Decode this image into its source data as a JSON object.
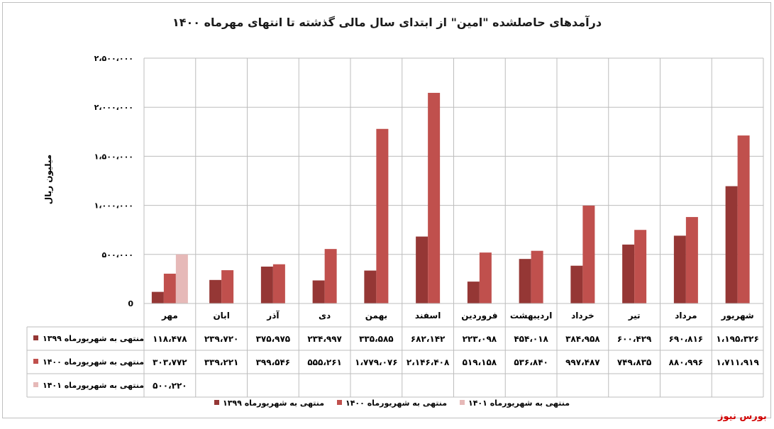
{
  "chart_data": {
    "type": "bar",
    "title": "درآمدهای حاصلشده \"امین\" از ابتدای سال مالی گذشته تا انتهای مهرماه ۱۴۰۰",
    "ylabel": "میلیون ریال",
    "ylim": [
      0,
      2500000
    ],
    "yticks": [
      0,
      500000,
      1000000,
      1500000,
      2000000,
      2500000
    ],
    "ytick_labels": [
      "0",
      "۵۰۰،۰۰۰",
      "۱،۰۰۰،۰۰۰",
      "۱،۵۰۰،۰۰۰",
      "۲،۰۰۰،۰۰۰",
      "۲،۵۰۰،۰۰۰"
    ],
    "grid": true,
    "legend_position": "bottom",
    "categories": [
      "مهر",
      "ابان",
      "آذر",
      "دی",
      "بهمن",
      "اسفند",
      "فروردین",
      "اردیبهشت",
      "خرداد",
      "تیر",
      "مرداد",
      "شهریور"
    ],
    "series": [
      {
        "name": "منتهی به شهریورماه ۱۳۹۹",
        "color": "#953735",
        "values": [
          118478,
          239720,
          375975,
          234997,
          335585,
          682142,
          223098,
          454018,
          384958,
          600429,
          690816,
          1195326
        ],
        "labels": [
          "۱۱۸،۴۷۸",
          "۲۳۹،۷۲۰",
          "۳۷۵،۹۷۵",
          "۲۳۴،۹۹۷",
          "۳۳۵،۵۸۵",
          "۶۸۲،۱۴۲",
          "۲۲۳،۰۹۸",
          "۴۵۴،۰۱۸",
          "۳۸۴،۹۵۸",
          "۶۰۰،۴۲۹",
          "۶۹۰،۸۱۶",
          "۱،۱۹۵،۳۲۶"
        ]
      },
      {
        "name": "منتهی به شهریورماه ۱۴۰۰",
        "color": "#c0504d",
        "values": [
          303772,
          339221,
          399546,
          555261,
          1779076,
          2146408,
          519158,
          536840,
          997487,
          749835,
          880996,
          1711919
        ],
        "labels": [
          "۳۰۳،۷۷۲",
          "۳۳۹،۲۲۱",
          "۳۹۹،۵۴۶",
          "۵۵۵،۲۶۱",
          "۱،۷۷۹،۰۷۶",
          "۲،۱۴۶،۴۰۸",
          "۵۱۹،۱۵۸",
          "۵۳۶،۸۴۰",
          "۹۹۷،۴۸۷",
          "۷۴۹،۸۳۵",
          "۸۸۰،۹۹۶",
          "۱،۷۱۱،۹۱۹"
        ]
      },
      {
        "name": "منتهی به شهریورماه ۱۴۰۱",
        "color": "#e6b9b8",
        "values": [
          500220,
          null,
          null,
          null,
          null,
          null,
          null,
          null,
          null,
          null,
          null,
          null
        ],
        "labels": [
          "۵۰۰،۲۲۰",
          "",
          "",
          "",
          "",
          "",
          "",
          "",
          "",
          "",
          "",
          ""
        ]
      }
    ]
  },
  "watermark": {
    "text": "بورس نیوز",
    "color": "#d20000"
  }
}
